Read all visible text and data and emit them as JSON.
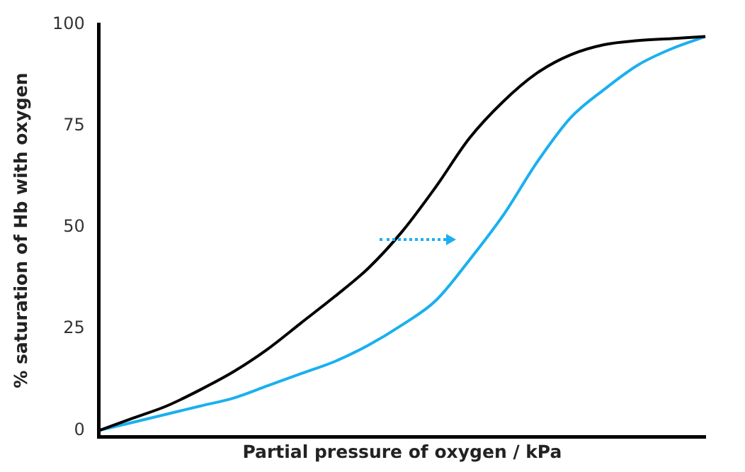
{
  "chart_data": {
    "type": "line",
    "xlabel": "Partial pressure of oxygen / kPa",
    "ylabel": "% saturation of Hb with oxygen",
    "categories": [
      null,
      null,
      null,
      null,
      null,
      null,
      null,
      null,
      null,
      null,
      null,
      null,
      null,
      null,
      null,
      null,
      null,
      null,
      null
    ],
    "series": [
      {
        "color": "#000000",
        "values": [
          0,
          3,
          6,
          10,
          14.5,
          20,
          26.5,
          33,
          40,
          49,
          60,
          72,
          81,
          88,
          92.5,
          95,
          96,
          96.5,
          97
        ]
      },
      {
        "color": "#1ab0ef",
        "values": [
          0,
          2,
          4,
          6,
          8,
          11,
          14,
          17,
          21,
          26,
          32,
          42,
          53,
          66,
          77,
          84,
          90,
          94,
          97
        ]
      }
    ],
    "ylim": [
      -1.5,
      100
    ],
    "yticks": [
      0,
      25,
      50,
      75,
      100
    ],
    "tick_labels": "y",
    "grid": false,
    "legend": false,
    "marker": "none",
    "line_style": "solid"
  }
}
